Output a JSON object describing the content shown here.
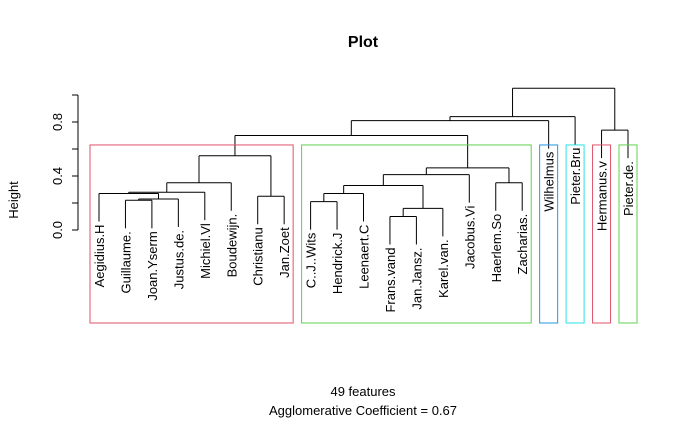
{
  "chart_data": {
    "type": "dendrogram",
    "title": "Plot",
    "y_label": "Height",
    "x_label": [
      "49 features",
      "Agglomerative Coefficient =  0.67"
    ],
    "ylim": [
      0,
      1.0
    ],
    "yticks": [
      {
        "value": 0,
        "label": "0.0"
      },
      {
        "value": 0.4,
        "label": "0.4"
      },
      {
        "value": 0.8,
        "label": "0.8"
      }
    ],
    "minor_yticks": [
      0.2,
      0.6,
      1.0
    ],
    "leaves": [
      "Aegidius.H",
      "Guillaume.",
      "Joan.Yserm",
      "Justus.de.",
      "Michiel.Vl",
      "Boudewijn.",
      "Christianu",
      "Jan.Zoet",
      "C..J..Wits",
      "Hendrick.J",
      "Leenaert.C",
      "Frans.vand",
      "Jan.Jansz.",
      "Karel.van.",
      "Jacobus.Vi",
      "Haerlem.So",
      "Zacharias.",
      "Wilhelmus",
      "Pieter.Bru",
      "Hermanus.v",
      "Pieter.de."
    ],
    "merge": [
      [
        -2,
        -3
      ],
      [
        -4,
        1
      ],
      [
        -1,
        2
      ],
      [
        3,
        -5
      ],
      [
        4,
        -6
      ],
      [
        -7,
        -8
      ],
      [
        5,
        6
      ],
      [
        -9,
        -10
      ],
      [
        8,
        -11
      ],
      [
        -12,
        -13
      ],
      [
        10,
        -14
      ],
      [
        9,
        11
      ],
      [
        12,
        -15
      ],
      [
        -16,
        -17
      ],
      [
        13,
        14
      ],
      [
        7,
        15
      ],
      [
        16,
        -18
      ],
      [
        17,
        -19
      ],
      [
        -20,
        -21
      ],
      [
        18,
        19
      ]
    ],
    "heights": [
      0.22,
      0.23,
      0.27,
      0.28,
      0.35,
      0.25,
      0.55,
      0.21,
      0.27,
      0.1,
      0.16,
      0.33,
      0.41,
      0.35,
      0.46,
      0.7,
      0.81,
      0.84,
      0.74,
      1.05
    ],
    "rect_top": 0.63,
    "rect_groups": [
      {
        "leaves": [
          1,
          8
        ],
        "color": "#DF536B"
      },
      {
        "leaves": [
          9,
          17
        ],
        "color": "#61D04F"
      },
      {
        "leaves": [
          18,
          18
        ],
        "color": "#2297E6"
      },
      {
        "leaves": [
          19,
          19
        ],
        "color": "#28E2E5"
      },
      {
        "leaves": [
          20,
          20
        ],
        "color": "#DF536B"
      },
      {
        "leaves": [
          21,
          21
        ],
        "color": "#61D04F"
      }
    ]
  }
}
